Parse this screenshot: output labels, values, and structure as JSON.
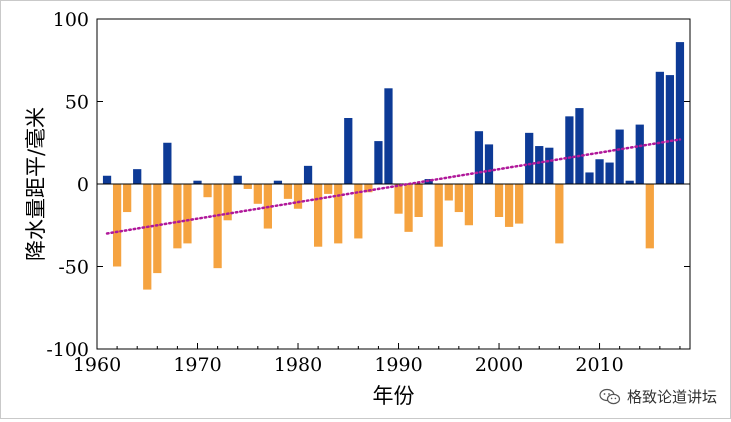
{
  "chart_data": {
    "type": "bar",
    "title": "",
    "xlabel": "年份",
    "ylabel": "降水量距平/毫米",
    "xlim": [
      1960,
      2019
    ],
    "ylim": [
      -100,
      100
    ],
    "x_ticks": [
      1960,
      1970,
      1980,
      1990,
      2000,
      2010
    ],
    "y_ticks": [
      -100,
      -50,
      0,
      50,
      100
    ],
    "positive_color": "#0d3a96",
    "negative_color": "#f5a340",
    "trend_color": "#b0189a",
    "trend_line": {
      "x": [
        1961,
        2018
      ],
      "y": [
        -30,
        27
      ]
    },
    "x": [
      1961,
      1962,
      1963,
      1964,
      1965,
      1966,
      1967,
      1968,
      1969,
      1970,
      1971,
      1972,
      1973,
      1974,
      1975,
      1976,
      1977,
      1978,
      1979,
      1980,
      1981,
      1982,
      1983,
      1984,
      1985,
      1986,
      1987,
      1988,
      1989,
      1990,
      1991,
      1992,
      1993,
      1994,
      1995,
      1996,
      1997,
      1998,
      1999,
      2000,
      2001,
      2002,
      2003,
      2004,
      2005,
      2006,
      2007,
      2008,
      2009,
      2010,
      2011,
      2012,
      2013,
      2014,
      2015,
      2016,
      2017,
      2018
    ],
    "values": [
      5,
      -50,
      -17,
      9,
      -64,
      -54,
      25,
      -39,
      -36,
      2,
      -8,
      -51,
      -22,
      5,
      -3,
      -12,
      -27,
      2,
      -9,
      -15,
      11,
      -38,
      -6,
      -36,
      40,
      -33,
      -5,
      26,
      58,
      -18,
      -29,
      -20,
      3,
      -38,
      -10,
      -17,
      -25,
      32,
      24,
      -20,
      -26,
      -24,
      31,
      23,
      22,
      -36,
      41,
      46,
      7,
      15,
      13,
      33,
      2,
      36,
      -39,
      68,
      66,
      86
    ]
  },
  "watermark": {
    "text": "格致论道讲坛",
    "icon": "wechat-icon"
  }
}
